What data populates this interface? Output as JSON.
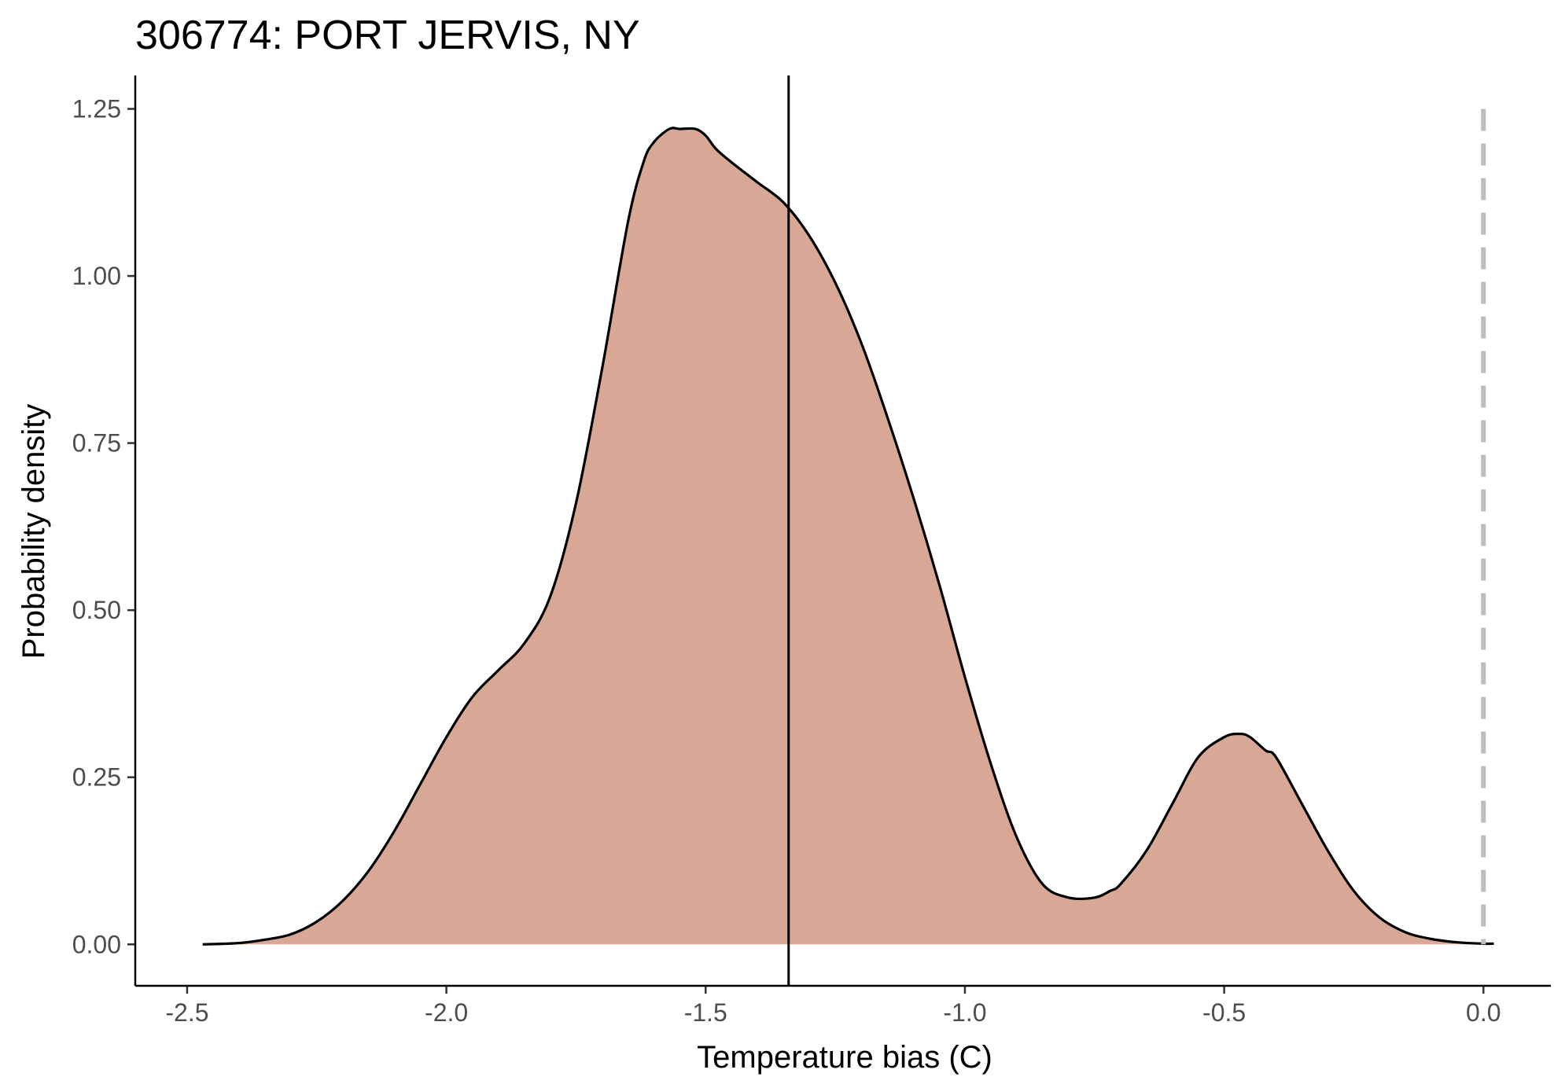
{
  "chart_data": {
    "type": "area",
    "title": "306774: PORT JERVIS, NY",
    "xlabel": "Temperature bias (C)",
    "ylabel": "Probability density",
    "xlim": [
      -2.6,
      0.13
    ],
    "ylim": [
      -0.062,
      1.3
    ],
    "x_ticks": [
      -2.5,
      -2.0,
      -1.5,
      -1.0,
      -0.5,
      0.0
    ],
    "x_tick_labels": [
      "-2.5",
      "-2.0",
      "-1.5",
      "-1.0",
      "-0.5",
      "0.0"
    ],
    "y_ticks": [
      0.0,
      0.25,
      0.5,
      0.75,
      1.0,
      1.25
    ],
    "y_tick_labels": [
      "0.00",
      "0.25",
      "0.50",
      "0.75",
      "1.00",
      "1.25"
    ],
    "grid": false,
    "fill_color": "#d9a795",
    "line_color": "#000000",
    "reference_line": {
      "x": -1.34,
      "color": "#000000",
      "style": "solid"
    },
    "zero_line": {
      "x": 0.0,
      "color": "#bebebe",
      "style": "dashed"
    },
    "series": [
      {
        "x": [
          -2.47,
          -2.4,
          -2.35,
          -2.3,
          -2.25,
          -2.2,
          -2.15,
          -2.1,
          -2.05,
          -2.0,
          -1.95,
          -1.9,
          -1.85,
          -1.8,
          -1.75,
          -1.7,
          -1.65,
          -1.62,
          -1.6,
          -1.57,
          -1.55,
          -1.52,
          -1.5,
          -1.48,
          -1.45,
          -1.4,
          -1.35,
          -1.3,
          -1.25,
          -1.2,
          -1.15,
          -1.1,
          -1.05,
          -1.0,
          -0.95,
          -0.9,
          -0.85,
          -0.8,
          -0.75,
          -0.72,
          -0.7,
          -0.65,
          -0.6,
          -0.55,
          -0.5,
          -0.47,
          -0.45,
          -0.42,
          -0.4,
          -0.35,
          -0.3,
          -0.25,
          -0.2,
          -0.15,
          -0.1,
          -0.05,
          0.0,
          0.02
        ],
        "y": [
          0.0,
          0.002,
          0.007,
          0.015,
          0.034,
          0.065,
          0.11,
          0.17,
          0.24,
          0.31,
          0.37,
          0.41,
          0.45,
          0.52,
          0.66,
          0.86,
          1.08,
          1.17,
          1.2,
          1.22,
          1.22,
          1.22,
          1.21,
          1.19,
          1.17,
          1.14,
          1.11,
          1.06,
          0.99,
          0.9,
          0.79,
          0.67,
          0.54,
          0.4,
          0.27,
          0.16,
          0.09,
          0.07,
          0.07,
          0.08,
          0.09,
          0.14,
          0.21,
          0.28,
          0.31,
          0.315,
          0.31,
          0.29,
          0.28,
          0.21,
          0.14,
          0.08,
          0.04,
          0.018,
          0.008,
          0.003,
          0.001,
          0.001
        ]
      }
    ]
  }
}
